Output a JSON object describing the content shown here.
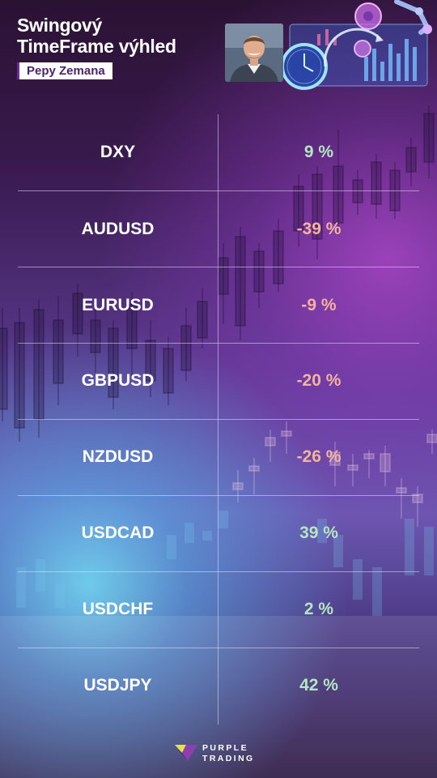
{
  "header": {
    "title_line1": "Swingový",
    "title_line2": "TimeFrame výhled",
    "author": "Pepy Zemana"
  },
  "colors": {
    "positive": "#b5e6c2",
    "negative": "#f2b49c",
    "author_badge_text": "#4b2370"
  },
  "table": {
    "rows": [
      {
        "symbol": "DXY",
        "value": "9 %",
        "sentiment": "positive"
      },
      {
        "symbol": "AUDUSD",
        "value": "-39 %",
        "sentiment": "negative"
      },
      {
        "symbol": "EURUSD",
        "value": "-9 %",
        "sentiment": "negative"
      },
      {
        "symbol": "GBPUSD",
        "value": "-20 %",
        "sentiment": "negative"
      },
      {
        "symbol": "NZDUSD",
        "value": "-26 %",
        "sentiment": "negative"
      },
      {
        "symbol": "USDCAD",
        "value": "39 %",
        "sentiment": "positive"
      },
      {
        "symbol": "USDCHF",
        "value": "2 %",
        "sentiment": "positive"
      },
      {
        "symbol": "USDJPY",
        "value": "42 %",
        "sentiment": "positive"
      }
    ]
  },
  "footer": {
    "brand_line1": "PURPLE",
    "brand_line2": "TRADING"
  }
}
